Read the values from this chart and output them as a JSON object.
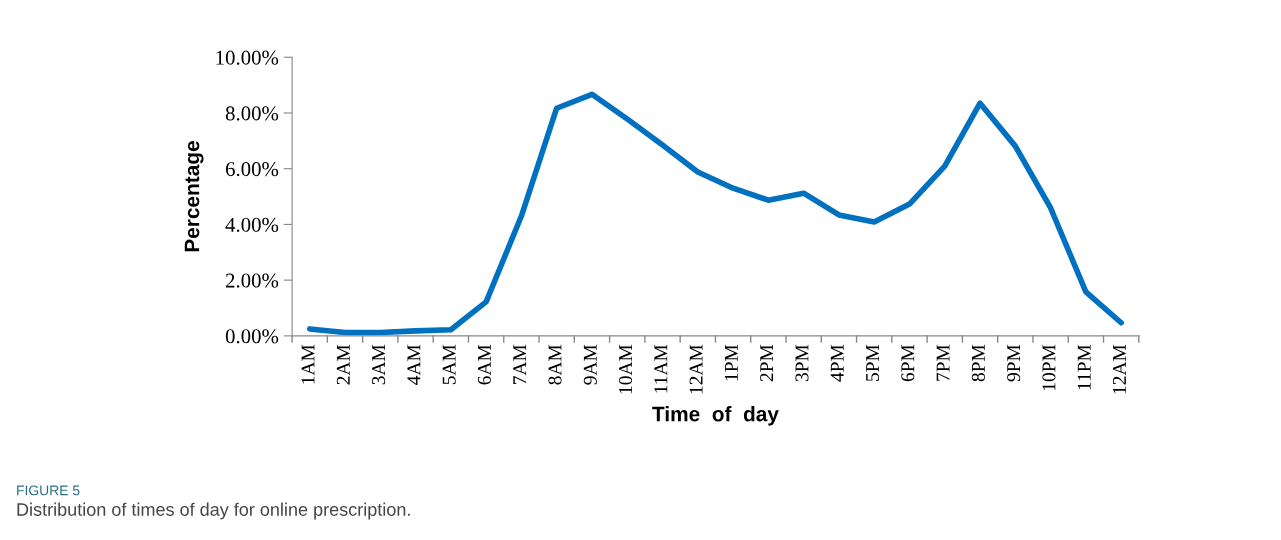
{
  "chart_data": {
    "type": "line",
    "xlabel": "Time  of  day",
    "ylabel": "Percentage",
    "categories": [
      "1AM",
      "2AM",
      "3AM",
      "4AM",
      "5AM",
      "6AM",
      "7AM",
      "8AM",
      "9AM",
      "10AM",
      "11AM",
      "12AM",
      "1PM",
      "2PM",
      "3PM",
      "4PM",
      "5PM",
      "6PM",
      "7PM",
      "8PM",
      "9PM",
      "10PM",
      "11PM",
      "12AM"
    ],
    "series": [
      {
        "color": "#0070c0",
        "values": [
          0.25,
          0.12,
          0.12,
          0.18,
          0.22,
          1.22,
          4.3,
          8.17,
          8.67,
          7.78,
          6.85,
          5.88,
          5.3,
          4.87,
          5.12,
          4.34,
          4.09,
          4.73,
          6.09,
          8.35,
          6.81,
          4.59,
          1.58,
          0.47
        ]
      }
    ],
    "ylim": [
      0,
      10
    ],
    "yticks": [
      {
        "value": 0,
        "label": "0.00%"
      },
      {
        "value": 2,
        "label": "2.00%"
      },
      {
        "value": 4,
        "label": "4.00%"
      },
      {
        "value": 6,
        "label": "6.00%"
      },
      {
        "value": 8,
        "label": "8.00%"
      },
      {
        "value": 10,
        "label": "10.00%"
      }
    ],
    "grid": false,
    "marker": "none",
    "line_style": "solid",
    "annotations": [
      "FIGURE 5",
      "Distribution of times of day for online prescription."
    ]
  }
}
